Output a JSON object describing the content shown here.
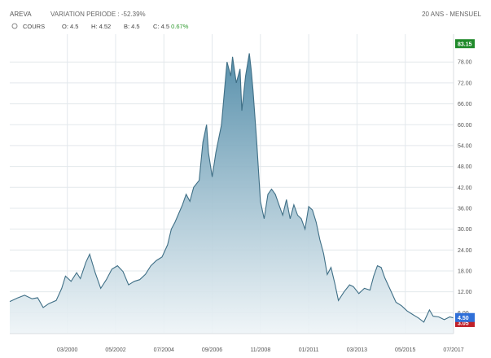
{
  "header": {
    "instrument": "AREVA",
    "variation_label": "VARIATION PERIODE : ",
    "variation_value": "-52.39%",
    "period": "20 ANS - MENSUEL"
  },
  "legend": {
    "series_name": "COURS",
    "open_label": "O: ",
    "open_value": "4.5",
    "high_label": "H: ",
    "high_value": "4.52",
    "low_label": "B: ",
    "low_value": "4.5",
    "close_label": "C: ",
    "close_value": "4.5",
    "change": "0.67%"
  },
  "tags": {
    "max": "83.15",
    "last": "4.50",
    "min": "3.05"
  },
  "colors": {
    "line": "#3f6f86",
    "area_top": "#4f8aa7",
    "area_bottom": "#eef4f7",
    "max_tag": "#1f8a2a",
    "last_tag": "#2f6fd8",
    "min_tag": "#c0202a",
    "positive": "#2e9a2e"
  },
  "chart_data": {
    "type": "area",
    "series": [
      {
        "name": "COURS",
        "points": [
          [
            "1997-08",
            9.2
          ],
          [
            "1997-12",
            10.2
          ],
          [
            "1998-04",
            11.0
          ],
          [
            "1998-08",
            10.0
          ],
          [
            "1998-11",
            10.3
          ],
          [
            "1999-02",
            7.5
          ],
          [
            "1999-05",
            8.6
          ],
          [
            "1999-09",
            9.5
          ],
          [
            "1999-12",
            13.0
          ],
          [
            "2000-02",
            16.5
          ],
          [
            "2000-05",
            15.0
          ],
          [
            "2000-08",
            17.5
          ],
          [
            "2000-10",
            15.8
          ],
          [
            "2001-01",
            20.5
          ],
          [
            "2001-03",
            22.8
          ],
          [
            "2001-06",
            17.5
          ],
          [
            "2001-09",
            13.0
          ],
          [
            "2001-12",
            15.5
          ],
          [
            "2002-03",
            18.5
          ],
          [
            "2002-06",
            19.5
          ],
          [
            "2002-09",
            17.8
          ],
          [
            "2002-12",
            14.0
          ],
          [
            "2003-03",
            15.0
          ],
          [
            "2003-06",
            15.5
          ],
          [
            "2003-09",
            17.0
          ],
          [
            "2003-12",
            19.5
          ],
          [
            "2004-03",
            21.0
          ],
          [
            "2004-06",
            22.0
          ],
          [
            "2004-09",
            25.5
          ],
          [
            "2004-11",
            30.0
          ],
          [
            "2005-01",
            32.0
          ],
          [
            "2005-03",
            34.5
          ],
          [
            "2005-05",
            37.0
          ],
          [
            "2005-07",
            40.0
          ],
          [
            "2005-09",
            38.0
          ],
          [
            "2005-11",
            42.0
          ],
          [
            "2006-02",
            44.0
          ],
          [
            "2006-04",
            55.0
          ],
          [
            "2006-06",
            60.0
          ],
          [
            "2006-07",
            52.0
          ],
          [
            "2006-09",
            45.0
          ],
          [
            "2006-11",
            52.0
          ],
          [
            "2007-02",
            60.0
          ],
          [
            "2007-04",
            72.0
          ],
          [
            "2007-05",
            78.0
          ],
          [
            "2007-07",
            74.0
          ],
          [
            "2007-08",
            79.5
          ],
          [
            "2007-10",
            72.0
          ],
          [
            "2007-12",
            76.0
          ],
          [
            "2008-01",
            64.0
          ],
          [
            "2008-03",
            74.0
          ],
          [
            "2008-05",
            80.5
          ],
          [
            "2008-06",
            76.0
          ],
          [
            "2008-07",
            70.0
          ],
          [
            "2008-09",
            55.0
          ],
          [
            "2008-11",
            38.0
          ],
          [
            "2009-01",
            33.0
          ],
          [
            "2009-03",
            40.0
          ],
          [
            "2009-05",
            41.5
          ],
          [
            "2009-07",
            40.0
          ],
          [
            "2009-09",
            37.0
          ],
          [
            "2009-11",
            34.0
          ],
          [
            "2010-01",
            38.5
          ],
          [
            "2010-03",
            33.0
          ],
          [
            "2010-05",
            37.0
          ],
          [
            "2010-07",
            34.0
          ],
          [
            "2010-09",
            33.0
          ],
          [
            "2010-11",
            30.0
          ],
          [
            "2011-01",
            36.5
          ],
          [
            "2011-03",
            35.5
          ],
          [
            "2011-05",
            32.0
          ],
          [
            "2011-07",
            27.0
          ],
          [
            "2011-09",
            23.0
          ],
          [
            "2011-11",
            17.0
          ],
          [
            "2012-01",
            19.0
          ],
          [
            "2012-03",
            14.5
          ],
          [
            "2012-05",
            9.5
          ],
          [
            "2012-08",
            12.0
          ],
          [
            "2012-11",
            14.0
          ],
          [
            "2013-01",
            13.5
          ],
          [
            "2013-04",
            11.5
          ],
          [
            "2013-07",
            13.0
          ],
          [
            "2013-10",
            12.5
          ],
          [
            "2013-12",
            16.5
          ],
          [
            "2014-02",
            19.5
          ],
          [
            "2014-04",
            19.0
          ],
          [
            "2014-06",
            16.0
          ],
          [
            "2014-09",
            12.5
          ],
          [
            "2014-12",
            9.0
          ],
          [
            "2015-03",
            8.0
          ],
          [
            "2015-06",
            6.5
          ],
          [
            "2015-09",
            5.5
          ],
          [
            "2015-12",
            4.5
          ],
          [
            "2016-03",
            3.3
          ],
          [
            "2016-06",
            6.8
          ],
          [
            "2016-08",
            5.0
          ],
          [
            "2016-11",
            4.8
          ],
          [
            "2017-02",
            4.0
          ],
          [
            "2017-05",
            4.8
          ],
          [
            "2017-07",
            4.5
          ]
        ]
      }
    ],
    "x_ticks": [
      "03/2000",
      "05/2002",
      "07/2004",
      "09/2006",
      "11/2008",
      "01/2011",
      "03/2013",
      "05/2015",
      "07/2017"
    ],
    "y_ticks": [
      "6.00",
      "12.00",
      "18.00",
      "24.00",
      "30.00",
      "36.00",
      "42.00",
      "48.00",
      "54.00",
      "60.00",
      "66.00",
      "72.00",
      "78.00"
    ],
    "xlim": [
      "1997-08",
      "2017-07"
    ],
    "ylim": [
      0,
      86
    ],
    "grid": true
  }
}
